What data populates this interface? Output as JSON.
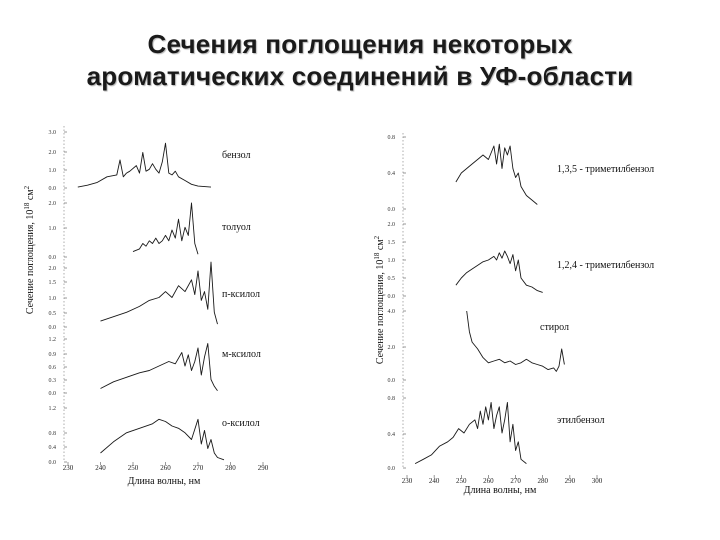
{
  "title": {
    "line1": "Сечения поглощения некоторых",
    "line2": "ароматических соединений в УФ-области"
  },
  "chart_data": [
    {
      "type": "line",
      "panel": "left",
      "xlabel": "Длина волны, нм",
      "ylabel": "Сечение поглощения, 10^18 см^2",
      "xlim": [
        230,
        290
      ],
      "xticks": [
        "230",
        "240",
        "250",
        "260",
        "270",
        "280",
        "290"
      ],
      "subplots": [
        {
          "label": "бензол",
          "yticks": [
            "0.0",
            "1.0",
            "2.0",
            "3.0"
          ],
          "series": [
            {
              "x": [
                233,
                236,
                239,
                242,
                245,
                246,
                247,
                248,
                249,
                251,
                252,
                253,
                254,
                255,
                256,
                257,
                258,
                259,
                260,
                261,
                262,
                263,
                264,
                266,
                268,
                270,
                274
              ],
              "y": [
                0.05,
                0.15,
                0.3,
                0.6,
                0.7,
                1.5,
                0.6,
                0.8,
                0.9,
                1.2,
                0.8,
                1.9,
                0.9,
                1.0,
                1.3,
                1.0,
                0.8,
                1.4,
                2.4,
                0.8,
                0.7,
                0.9,
                0.6,
                0.4,
                0.2,
                0.1,
                0.05
              ]
            }
          ]
        },
        {
          "label": "толуол",
          "yticks": [
            "0.0",
            "1.0",
            "2.0"
          ],
          "series": [
            {
              "x": [
                250,
                252,
                253,
                254,
                255,
                256,
                257,
                258,
                259,
                260,
                261,
                262,
                263,
                264,
                265,
                266,
                267,
                268,
                269,
                270
              ],
              "y": [
                0.2,
                0.3,
                0.5,
                0.4,
                0.6,
                0.5,
                0.7,
                0.5,
                0.6,
                0.8,
                0.6,
                1.0,
                0.7,
                1.4,
                0.6,
                1.1,
                0.8,
                2.0,
                0.5,
                0.1
              ]
            }
          ]
        },
        {
          "label": "п-ксилол",
          "yticks": [
            "0.0",
            "0.5",
            "1.0",
            "1.5",
            "2.0"
          ],
          "series": [
            {
              "x": [
                240,
                244,
                248,
                252,
                255,
                258,
                260,
                262,
                264,
                266,
                268,
                269,
                270,
                271,
                272,
                273,
                274,
                275,
                276
              ],
              "y": [
                0.2,
                0.35,
                0.5,
                0.7,
                0.9,
                1.0,
                1.2,
                1.0,
                1.4,
                1.2,
                1.6,
                1.1,
                1.9,
                0.9,
                1.2,
                0.6,
                2.2,
                0.5,
                0.1
              ]
            }
          ]
        },
        {
          "label": "м-ксилол",
          "yticks": [
            "0.0",
            "0.3",
            "0.6",
            "0.9",
            "1.2"
          ],
          "series": [
            {
              "x": [
                240,
                244,
                248,
                252,
                255,
                258,
                261,
                263,
                265,
                266,
                267,
                268,
                269,
                270,
                271,
                272,
                273,
                274,
                275,
                276
              ],
              "y": [
                0.1,
                0.25,
                0.35,
                0.45,
                0.5,
                0.6,
                0.7,
                0.65,
                0.9,
                0.6,
                0.85,
                0.5,
                0.7,
                1.0,
                0.4,
                0.8,
                1.1,
                0.3,
                0.15,
                0.05
              ]
            }
          ]
        },
        {
          "label": "о-ксилол",
          "yticks": [
            "0.0",
            "0.4",
            "0.8",
            "1.2"
          ],
          "series": [
            {
              "x": [
                240,
                244,
                248,
                252,
                256,
                258,
                260,
                262,
                264,
                266,
                268,
                270,
                271,
                272,
                273,
                274,
                275,
                276,
                278
              ],
              "y": [
                0.2,
                0.45,
                0.65,
                0.75,
                0.85,
                0.95,
                0.9,
                0.8,
                0.75,
                0.65,
                0.5,
                0.95,
                0.4,
                0.7,
                0.3,
                0.5,
                0.2,
                0.1,
                0.05
              ]
            }
          ]
        }
      ]
    },
    {
      "type": "line",
      "panel": "right",
      "xlabel": "Длина волны, нм",
      "ylabel": "Сечение поглощения, 10^18 см^2",
      "xlim": [
        230,
        300
      ],
      "xticks": [
        "230",
        "240",
        "250",
        "260",
        "270",
        "280",
        "290",
        "300"
      ],
      "subplots": [
        {
          "label": "1,3,5 - триметилбензол",
          "yticks": [
            "0.0",
            "0.4",
            "0.8"
          ],
          "series": [
            {
              "x": [
                248,
                250,
                252,
                254,
                256,
                258,
                260,
                262,
                263,
                264,
                265,
                266,
                267,
                268,
                269,
                270,
                271,
                272,
                274,
                276,
                278
              ],
              "y": [
                0.3,
                0.4,
                0.45,
                0.5,
                0.55,
                0.6,
                0.55,
                0.7,
                0.5,
                0.72,
                0.45,
                0.68,
                0.6,
                0.7,
                0.45,
                0.35,
                0.4,
                0.25,
                0.15,
                0.1,
                0.05
              ]
            }
          ]
        },
        {
          "label": "1,2,4 - триметилбензол",
          "yticks": [
            "0.0",
            "0.5",
            "1.0",
            "1.5",
            "2.0"
          ],
          "series": [
            {
              "x": [
                248,
                250,
                252,
                254,
                256,
                258,
                260,
                262,
                263,
                264,
                265,
                266,
                267,
                268,
                269,
                270,
                271,
                272,
                274,
                276,
                278,
                280
              ],
              "y": [
                0.3,
                0.5,
                0.65,
                0.75,
                0.85,
                0.95,
                1.0,
                1.1,
                1.0,
                1.2,
                1.05,
                1.25,
                1.1,
                0.9,
                1.15,
                0.7,
                1.0,
                0.5,
                0.3,
                0.25,
                0.15,
                0.1
              ]
            }
          ]
        },
        {
          "label": "стирол",
          "yticks": [
            "0.0",
            "2.0",
            "4.0"
          ],
          "series": [
            {
              "x": [
                252,
                253,
                254,
                256,
                258,
                260,
                262,
                264,
                266,
                268,
                270,
                272,
                274,
                276,
                278,
                280,
                282,
                284,
                285,
                286,
                287,
                288
              ],
              "y": [
                4.0,
                2.8,
                2.2,
                1.8,
                1.3,
                1.0,
                1.1,
                1.2,
                1.0,
                1.1,
                0.9,
                1.0,
                1.2,
                1.0,
                0.9,
                0.8,
                0.6,
                0.7,
                0.5,
                0.8,
                1.8,
                0.9
              ]
            }
          ]
        },
        {
          "label": "этилбензол",
          "yticks": [
            "0.0",
            "0.4",
            "0.8"
          ],
          "series": [
            {
              "x": [
                233,
                236,
                239,
                242,
                245,
                247,
                249,
                251,
                253,
                255,
                256,
                257,
                258,
                259,
                260,
                261,
                262,
                263,
                264,
                265,
                266,
                267,
                268,
                269,
                270,
                271,
                272,
                274
              ],
              "y": [
                0.05,
                0.1,
                0.15,
                0.25,
                0.3,
                0.35,
                0.45,
                0.4,
                0.5,
                0.55,
                0.45,
                0.65,
                0.5,
                0.7,
                0.55,
                0.75,
                0.45,
                0.6,
                0.7,
                0.4,
                0.55,
                0.75,
                0.3,
                0.5,
                0.2,
                0.3,
                0.1,
                0.05
              ]
            }
          ]
        }
      ]
    }
  ]
}
